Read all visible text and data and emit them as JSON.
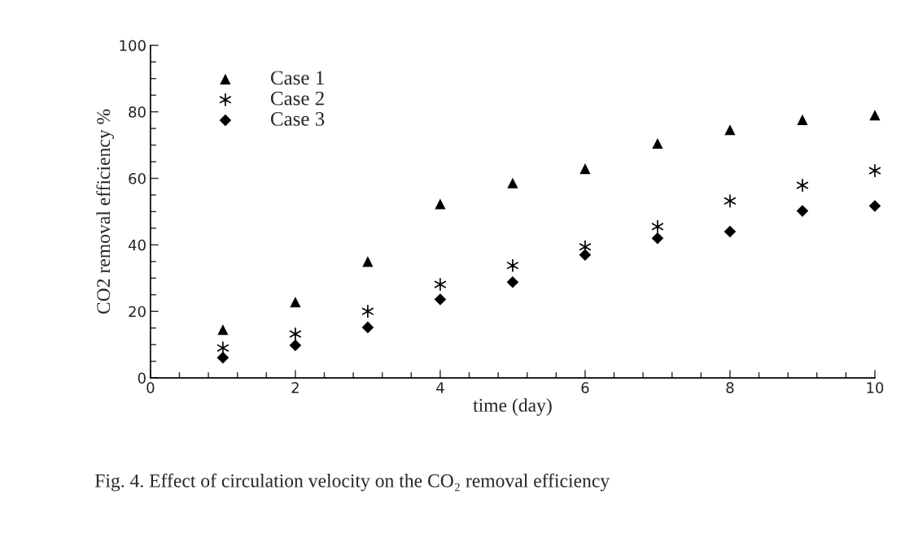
{
  "chart_data": {
    "type": "scatter",
    "xlabel": "time (day)",
    "ylabel": "CO2 removal efficiency %",
    "x": [
      1,
      2,
      3,
      4,
      5,
      6,
      7,
      8,
      9,
      10
    ],
    "series": [
      {
        "name": "Case 1",
        "color": "#000000",
        "marker": "triangle",
        "values": [
          14.5,
          22.8,
          35,
          52.3,
          58.6,
          62.9,
          70.5,
          74.6,
          77.6,
          79
        ]
      },
      {
        "name": "Case 2",
        "color": "#000000",
        "marker": "cross",
        "values": [
          9,
          13.2,
          20,
          28.1,
          33.8,
          39.4,
          45.5,
          53.2,
          57.9,
          62.3
        ]
      },
      {
        "name": "Case 3",
        "color": "#000000",
        "marker": "diamond",
        "values": [
          6.1,
          9.8,
          15.2,
          23.6,
          28.8,
          37,
          42,
          44,
          50.2,
          51.7
        ]
      }
    ],
    "xlim": [
      0,
      10
    ],
    "xticks": [
      0,
      2,
      4,
      6,
      8,
      10
    ],
    "ylim": [
      0,
      100
    ],
    "yticks": [
      0,
      20,
      40,
      60,
      80,
      100
    ],
    "grid": false,
    "legend": "top left",
    "annotations": [
      "Fig. 4. Effect of circulation velocity on the CO₂ removal efficiency"
    ]
  }
}
